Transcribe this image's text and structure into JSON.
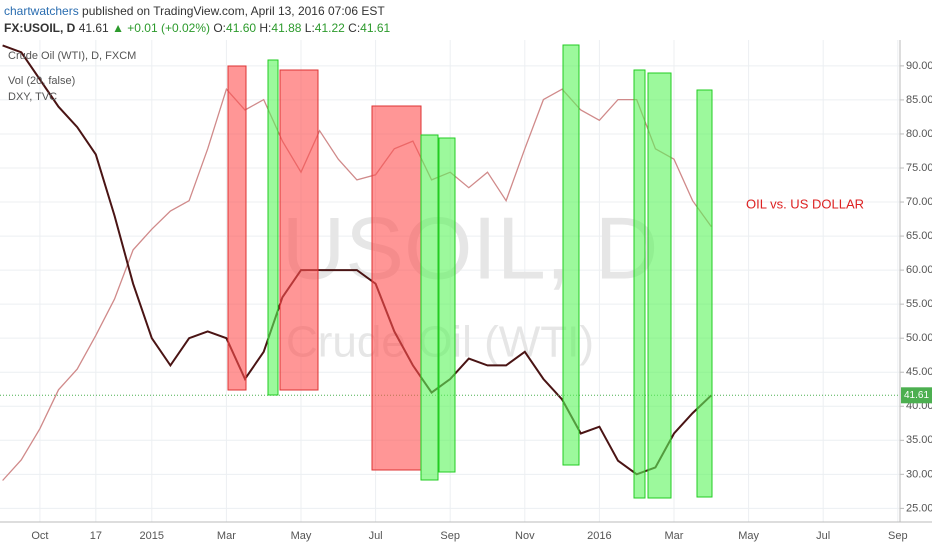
{
  "header": {
    "author": "chartwatchers",
    "published": "published on TradingView.com, April 13, 2016 07:06 EST",
    "symbol": "FX:USOIL, D",
    "last": "41.61",
    "change": "▲ +0.01 (+0.02%)",
    "ohlc": [
      {
        "key": "O:",
        "val": "41.60"
      },
      {
        "key": "H:",
        "val": "41.88"
      },
      {
        "key": "L:",
        "val": "41.22"
      },
      {
        "key": "C:",
        "val": "41.61"
      }
    ]
  },
  "legend": [
    "Crude Oil (WTI), D, FXCM",
    "Vol (20, false)",
    "DXY, TVC"
  ],
  "watermark": {
    "symbol": "USOIL, D",
    "name": "Crude Oil (WTI)"
  },
  "chart_data": {
    "type": "line",
    "annotation": "OIL vs. US DOLLAR",
    "categories": [
      null,
      null,
      "Oct",
      null,
      null,
      "17",
      null,
      null,
      "2015",
      null,
      null,
      null,
      "Mar",
      null,
      null,
      null,
      "May",
      null,
      null,
      null,
      "Jul",
      null,
      null,
      null,
      "Sep",
      null,
      null,
      null,
      "Nov",
      null,
      null,
      null,
      "2016",
      null,
      null,
      null,
      "Mar",
      null,
      null,
      null,
      "May",
      null,
      null,
      null,
      "Jul",
      null,
      null,
      null,
      "Sep"
    ],
    "series": [
      {
        "name": "Crude Oil (WTI)",
        "color": "#4a1414",
        "values": [
          93,
          92,
          88,
          84,
          81,
          77,
          68,
          58,
          50,
          46,
          50,
          51,
          50,
          44,
          48,
          56,
          60,
          60,
          60,
          60,
          58,
          51,
          46,
          42,
          44,
          47,
          46,
          46,
          48,
          44,
          41,
          36,
          37,
          32,
          30,
          31,
          36,
          39,
          41.61,
          null,
          null,
          null,
          null,
          null,
          null,
          null,
          null,
          null,
          null
        ]
      },
      {
        "name": "DXY",
        "color": "#d08a8a",
        "axis": "y2",
        "values": [
          84.2,
          85,
          86.2,
          87.7,
          88.5,
          89.8,
          91.2,
          93.1,
          93.9,
          94.6,
          95,
          97,
          99.3,
          98.5,
          98.9,
          97.3,
          96.1,
          97.7,
          96.6,
          95.8,
          96,
          97,
          97.3,
          95.8,
          96.1,
          95.5,
          96.1,
          95,
          97,
          98.9,
          99.3,
          98.5,
          98.1,
          98.9,
          98.9,
          97,
          96.6,
          95,
          94,
          null,
          null,
          null,
          null,
          null,
          null,
          null,
          null,
          null,
          null
        ]
      }
    ],
    "ylim": [
      23,
      93.8
    ],
    "yticks": [
      {
        "value": 25,
        "label": "25.00"
      },
      {
        "value": 30,
        "label": "30.00"
      },
      {
        "value": 35,
        "label": "35.00"
      },
      {
        "value": 40,
        "label": "40.00"
      },
      {
        "value": 45,
        "label": "45.00"
      },
      {
        "value": 50,
        "label": "50.00"
      },
      {
        "value": 55,
        "label": "55.00"
      },
      {
        "value": 60,
        "label": "60.00"
      },
      {
        "value": 65,
        "label": "65.00"
      },
      {
        "value": 70,
        "label": "70.00"
      },
      {
        "value": 75,
        "label": "75.00"
      },
      {
        "value": 80,
        "label": "80.00"
      },
      {
        "value": 85,
        "label": "85.00"
      },
      {
        "value": 90,
        "label": "90.00"
      }
    ],
    "y2lim": [
      82.6,
      101.2
    ],
    "grid": true
  }
}
